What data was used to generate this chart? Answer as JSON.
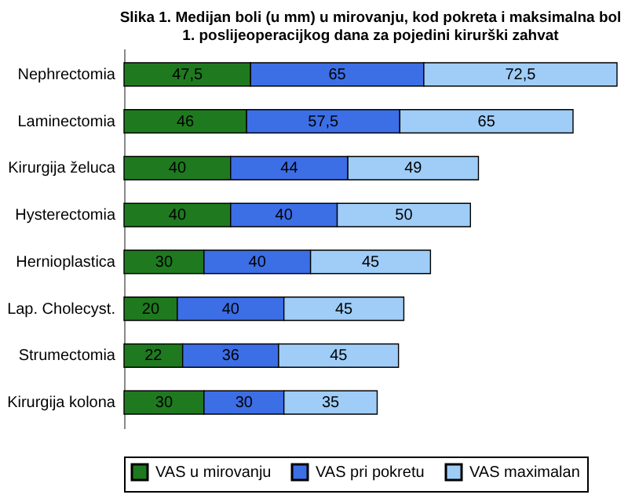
{
  "chart_data": {
    "type": "bar",
    "orientation": "horizontal",
    "stacked": true,
    "title": [
      "Slika 1. Medijan boli (u mm) u mirovanju, kod pokreta i maksimalna bol",
      "1. poslijeoperacijkog dana za pojedini kirurški zahvat"
    ],
    "categories": [
      "Nephrectomia",
      "Laminectomia",
      "Kirurgija želuca",
      "Hysterectomia",
      "Hernioplastica",
      "Lap. Cholecyst.",
      "Strumectomia",
      "Kirurgija kolona"
    ],
    "series": [
      {
        "name": "VAS u mirovanju",
        "color": "#1f7a1f",
        "values": [
          47.5,
          46,
          40,
          40,
          30,
          20,
          22,
          30
        ],
        "value_labels": [
          "47,5",
          "46",
          "40",
          "40",
          "30",
          "20",
          "22",
          "30"
        ]
      },
      {
        "name": "VAS pri pokretu",
        "color": "#3c6ee6",
        "values": [
          65,
          57.5,
          44,
          40,
          40,
          40,
          36,
          30
        ],
        "value_labels": [
          "65",
          "57,5",
          "44",
          "40",
          "40",
          "40",
          "36",
          "30"
        ]
      },
      {
        "name": "VAS maximalan",
        "color": "#9fcdf7",
        "values": [
          72.5,
          65,
          49,
          50,
          45,
          45,
          45,
          35
        ],
        "value_labels": [
          "72,5",
          "65",
          "49",
          "50",
          "45",
          "45",
          "45",
          "35"
        ]
      }
    ],
    "legend": "bottom",
    "grid": false
  }
}
